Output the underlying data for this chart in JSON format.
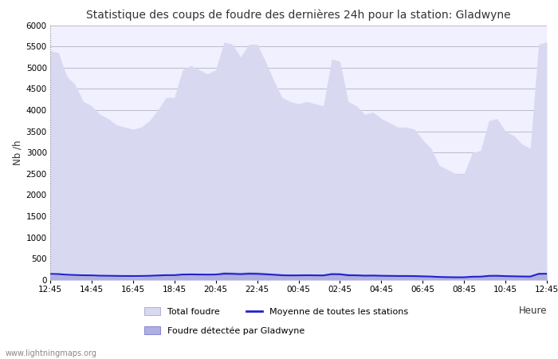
{
  "title": "Statistique des coups de foudre des dernières 24h pour la station: Gladwyne",
  "xlabel": "Heure",
  "ylabel": "Nb /h",
  "ylim": [
    0,
    6000
  ],
  "yticks": [
    0,
    500,
    1000,
    1500,
    2000,
    2500,
    3000,
    3500,
    4000,
    4500,
    5000,
    5500,
    6000
  ],
  "xtick_labels": [
    "12:45",
    "14:45",
    "16:45",
    "18:45",
    "20:45",
    "22:45",
    "00:45",
    "02:45",
    "04:45",
    "06:45",
    "08:45",
    "10:45",
    "12:45"
  ],
  "bg_color": "#ffffff",
  "plot_bg_color": "#f0f0ff",
  "grid_color": "#bbbbcc",
  "fill_total_color": "#d8d8f0",
  "fill_gladwyne_color": "#b0b0e0",
  "line_moyenne_color": "#2222cc",
  "watermark": "www.lightningmaps.org",
  "legend_labels": [
    "Total foudre",
    "Moyenne de toutes les stations",
    "Foudre détectée par Gladwyne"
  ],
  "total_foudre": [
    5400,
    5350,
    4800,
    4600,
    4200,
    4100,
    3900,
    3800,
    3650,
    3600,
    3550,
    3600,
    3750,
    4000,
    4300,
    4300,
    4950,
    5050,
    4950,
    4850,
    4950,
    5600,
    5550,
    5250,
    5550,
    5550,
    5150,
    4700,
    4300,
    4200,
    4150,
    4200,
    4150,
    4100,
    5200,
    5150,
    4200,
    4100,
    3900,
    3950,
    3800,
    3700,
    3600,
    3600,
    3550,
    3300,
    3100,
    2700,
    2600,
    2500,
    2500,
    3000,
    3050,
    3750,
    3800,
    3500,
    3400,
    3200,
    3100,
    5550,
    5600
  ],
  "gladwyne": [
    120,
    125,
    110,
    105,
    100,
    100,
    90,
    90,
    85,
    80,
    75,
    75,
    95,
    105,
    115,
    115,
    130,
    140,
    135,
    130,
    140,
    200,
    190,
    180,
    195,
    190,
    175,
    160,
    145,
    140,
    140,
    145,
    140,
    140,
    175,
    170,
    150,
    145,
    130,
    135,
    125,
    120,
    115,
    115,
    110,
    100,
    95,
    85,
    80,
    78,
    78,
    90,
    92,
    110,
    115,
    105,
    100,
    95,
    90,
    180,
    175
  ],
  "moyenne": [
    145,
    140,
    125,
    118,
    112,
    110,
    102,
    100,
    97,
    95,
    94,
    95,
    100,
    108,
    115,
    115,
    130,
    133,
    130,
    128,
    130,
    148,
    145,
    138,
    148,
    145,
    135,
    125,
    112,
    108,
    110,
    112,
    110,
    108,
    138,
    135,
    112,
    110,
    103,
    105,
    100,
    98,
    95,
    95,
    93,
    87,
    82,
    72,
    68,
    65,
    65,
    78,
    80,
    98,
    100,
    92,
    88,
    84,
    82,
    145,
    148
  ]
}
